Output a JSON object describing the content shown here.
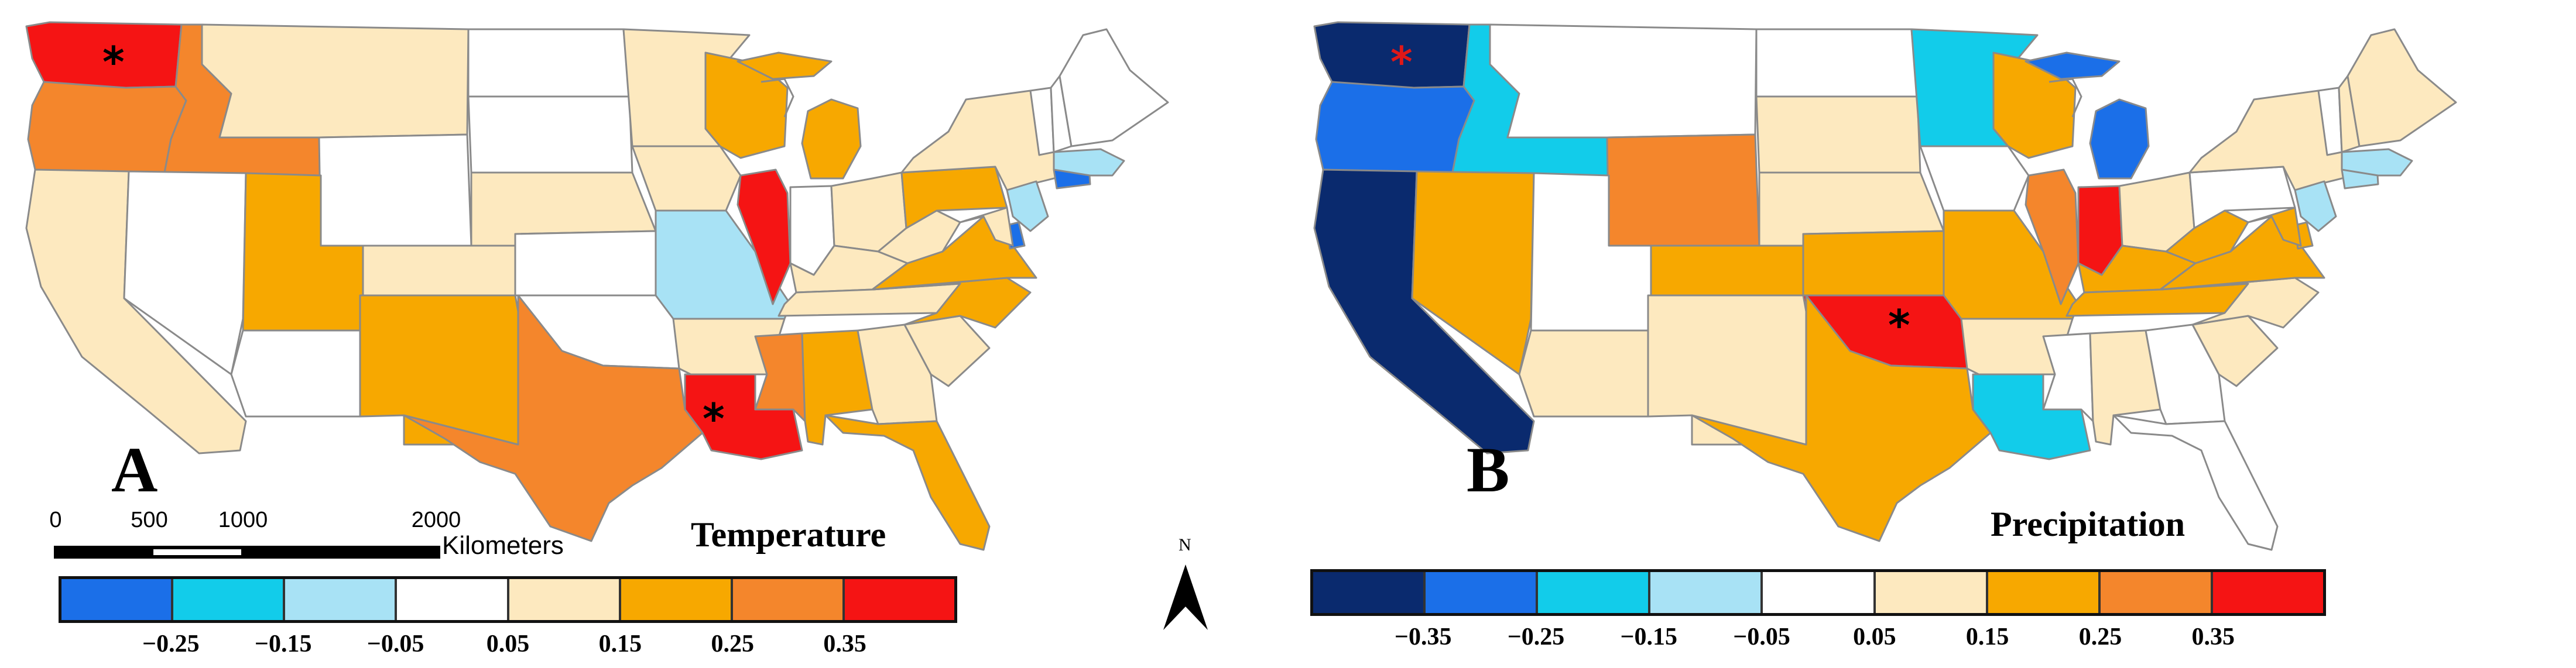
{
  "panels": [
    {
      "letter": "A",
      "variable": "Temperature",
      "legend": {
        "colors": [
          "#1b6fe8",
          "#12ccea",
          "#a8e2f5",
          "#ffffff",
          "#fde9bf",
          "#f7a800",
          "#f4862c",
          "#f51414"
        ],
        "ticks": [
          "−0.25",
          "−0.15",
          "−0.05",
          "0.05",
          "0.15",
          "0.25",
          "0.35"
        ]
      },
      "states": {
        "WA": "#f51414",
        "OR": "#f4862c",
        "ID": "#f4862c",
        "CA": "#fde9bf",
        "NV": "#ffffff",
        "MT": "#fde9bf",
        "WY": "#ffffff",
        "UT": "#f7a800",
        "CO": "#fde9bf",
        "AZ": "#ffffff",
        "NM": "#f7a800",
        "ND": "#ffffff",
        "SD": "#ffffff",
        "NE": "#fde9bf",
        "KS": "#ffffff",
        "OK": "#ffffff",
        "TX": "#f4862c",
        "MN": "#fde9bf",
        "IA": "#fde9bf",
        "MO": "#a8e2f5",
        "AR": "#fde9bf",
        "LA": "#f51414",
        "WI": "#f7a800",
        "IL": "#f51414",
        "MI": "#f7a800",
        "IN": "#ffffff",
        "OH": "#fde9bf",
        "KY": "#fde9bf",
        "TN": "#fde9bf",
        "MS": "#f4862c",
        "AL": "#f7a800",
        "GA": "#fde9bf",
        "FL": "#f7a800",
        "SC": "#fde9bf",
        "NC": "#f7a800",
        "VA": "#f7a800",
        "WV": "#fde9bf",
        "PA": "#f7a800",
        "NY": "#fde9bf",
        "NJ": "#a8e2f5",
        "DE": "#1b6fe8",
        "MD": "#fde9bf",
        "CT": "#1b6fe8",
        "MA": "#a8e2f5",
        "VT": "#ffffff",
        "NH": "#ffffff",
        "ME": "#ffffff"
      },
      "significant": [
        "WA",
        "LA"
      ],
      "scale_bar": {
        "ticks": [
          "0",
          "500",
          "1000",
          "2000"
        ],
        "unit": "Kilometers"
      },
      "north_label": "N"
    },
    {
      "letter": "B",
      "variable": "Precipitation",
      "legend": {
        "colors": [
          "#0a2a6e",
          "#1b6fe8",
          "#12ccea",
          "#a8e2f5",
          "#ffffff",
          "#fde9bf",
          "#f7a800",
          "#f4862c",
          "#f51414"
        ],
        "ticks": [
          "−0.35",
          "−0.25",
          "−0.15",
          "−0.05",
          "0.05",
          "0.15",
          "0.25",
          "0.35"
        ]
      },
      "states": {
        "WA": "#0a2a6e",
        "OR": "#1b6fe8",
        "ID": "#12ccea",
        "CA": "#0a2a6e",
        "NV": "#f7a800",
        "MT": "#ffffff",
        "WY": "#f4862c",
        "UT": "#ffffff",
        "CO": "#f7a800",
        "AZ": "#fde9bf",
        "NM": "#fde9bf",
        "ND": "#ffffff",
        "SD": "#fde9bf",
        "NE": "#fde9bf",
        "KS": "#f7a800",
        "OK": "#f51414",
        "TX": "#f7a800",
        "MN": "#12ccea",
        "IA": "#ffffff",
        "MO": "#f7a800",
        "AR": "#fde9bf",
        "LA": "#12ccea",
        "WI": "#f7a800",
        "IL": "#f4862c",
        "MI": "#1b6fe8",
        "IN": "#f51414",
        "OH": "#fde9bf",
        "KY": "#f7a800",
        "TN": "#f7a800",
        "MS": "#ffffff",
        "AL": "#fde9bf",
        "GA": "#ffffff",
        "FL": "#ffffff",
        "SC": "#fde9bf",
        "NC": "#fde9bf",
        "VA": "#f7a800",
        "WV": "#f7a800",
        "PA": "#ffffff",
        "NY": "#fde9bf",
        "NJ": "#a8e2f5",
        "DE": "#f7a800",
        "MD": "#f7a800",
        "CT": "#a8e2f5",
        "MA": "#a8e2f5",
        "VT": "#ffffff",
        "NH": "#fde9bf",
        "ME": "#fde9bf"
      },
      "significant": [
        "WA",
        "OK"
      ],
      "asterisk_colors": {
        "WA": "#e01818",
        "OK": "#000000"
      }
    }
  ]
}
